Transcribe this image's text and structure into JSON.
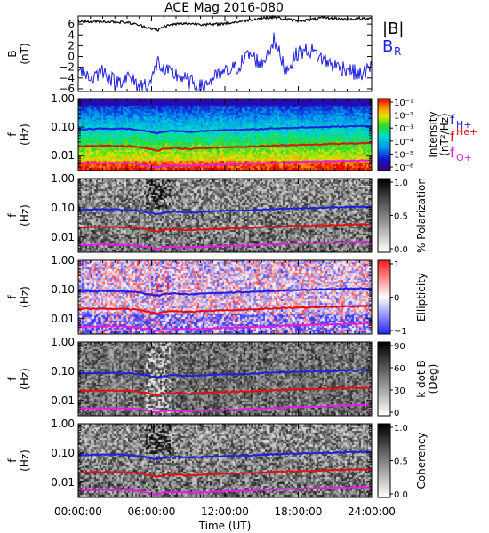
{
  "title": "ACE Mag 2016-080",
  "x_axis": {
    "ticks": [
      "00:00:00",
      "06:00:00",
      "12:00:00",
      "18:00:00",
      "24:00:00"
    ],
    "label": "Time (UT)",
    "range_hours": [
      0,
      24
    ]
  },
  "frequency_axis": {
    "ticks": [
      "1.00",
      "0.10",
      "0.01"
    ],
    "ylabel_1": "f",
    "ylabel_2": "(Hz)",
    "range_hz": [
      0.003,
      1.0
    ],
    "scale": "log"
  },
  "curve_legend": {
    "H": {
      "base": "f",
      "sub": "H+",
      "color": "#1f1fe0"
    },
    "He": {
      "base": "f",
      "sup": "He+",
      "color": "#e01010"
    },
    "O": {
      "base": "f",
      "sub": "O+",
      "color": "#e020e0"
    }
  },
  "panels": {
    "b": {
      "ylabel_1": "B",
      "ylabel_2": "(nT)",
      "ticks": [
        "6",
        "4",
        "2",
        "0",
        "−2",
        "−4",
        "−6"
      ],
      "legend_total": "|B|",
      "legend_radial": "B",
      "legend_radial_sub": "R",
      "total_color": "#000000",
      "radial_color": "#1f1fe0"
    },
    "intensity": {
      "cb_ticks": [
        "10⁻¹",
        "10⁻²",
        "10⁻³",
        "10⁻⁴",
        "10⁻⁵",
        "10⁻⁶"
      ],
      "cb_label_1": "Intensity",
      "cb_label_2": "(nT²/Hz)",
      "colormap": "rainbow"
    },
    "polarization": {
      "cb_ticks": [
        "1.0",
        "0.5",
        "0.0"
      ],
      "cb_label_1": "% Polarization",
      "colormap": "grayscale"
    },
    "ellipticity": {
      "cb_ticks": [
        "1",
        "0",
        "−1"
      ],
      "cb_label_1": "Ellipticity",
      "colormap": "blue-white-red"
    },
    "kdotb": {
      "cb_ticks": [
        "90",
        "60",
        "30",
        "0"
      ],
      "cb_label_1": "k dot B",
      "cb_label_2": "(Deg)",
      "colormap": "grayscale"
    },
    "coherency": {
      "cb_ticks": [
        "1.0",
        "0.5",
        "0.0"
      ],
      "cb_label_1": "Coherency",
      "colormap": "grayscale"
    }
  },
  "chart_data": [
    {
      "type": "line",
      "ylim": [
        -6.5,
        7.5
      ],
      "x_hours": [
        0,
        1,
        2,
        3,
        4,
        5,
        6,
        6.5,
        7,
        8,
        9,
        10,
        11,
        12,
        13,
        14,
        15,
        16,
        17,
        18,
        19,
        20,
        21,
        22,
        23,
        24
      ],
      "series": [
        {
          "name": "|B|",
          "values": [
            6.6,
            6.4,
            6.5,
            6.4,
            6.3,
            5.8,
            5.2,
            4.8,
            5.6,
            6.0,
            6.1,
            6.0,
            5.9,
            6.1,
            6.4,
            6.8,
            7.1,
            7.3,
            6.9,
            6.6,
            6.8,
            7.2,
            7.0,
            6.9,
            7.0,
            7.0
          ]
        },
        {
          "name": "B",
          "values": [
            -1.5,
            -4.2,
            -2.5,
            -4.8,
            -3.8,
            -5.5,
            -4.6,
            -0.8,
            -2.8,
            -3.4,
            -4.5,
            -5.8,
            -4.2,
            -3.0,
            -2.0,
            0.5,
            -1.5,
            3.0,
            -2.5,
            0.8,
            1.2,
            -0.5,
            -1.8,
            -2.2,
            -3.5,
            -2.0
          ]
        }
      ]
    },
    {
      "type": "line",
      "ylim": [
        0.003,
        1.0
      ],
      "x_hours": [
        0,
        2,
        4,
        5,
        6,
        6.5,
        7,
        8,
        9,
        10,
        12,
        14,
        16,
        18,
        20,
        22,
        24
      ],
      "series": [
        {
          "name": "H+",
          "values": [
            0.085,
            0.088,
            0.086,
            0.08,
            0.066,
            0.06,
            0.07,
            0.074,
            0.068,
            0.072,
            0.078,
            0.082,
            0.09,
            0.096,
            0.1,
            0.106,
            0.11
          ]
        },
        {
          "name": "He+",
          "values": [
            0.0215,
            0.022,
            0.0215,
            0.02,
            0.0165,
            0.015,
            0.0175,
            0.0185,
            0.017,
            0.018,
            0.0195,
            0.0205,
            0.0225,
            0.024,
            0.025,
            0.0265,
            0.0275
          ]
        },
        {
          "name": "O+",
          "values": [
            0.0054,
            0.0055,
            0.0054,
            0.005,
            0.0041,
            0.0038,
            0.0044,
            0.0046,
            0.0043,
            0.0045,
            0.0049,
            0.0051,
            0.0056,
            0.006,
            0.0063,
            0.0066,
            0.0069
          ]
        }
      ]
    }
  ]
}
